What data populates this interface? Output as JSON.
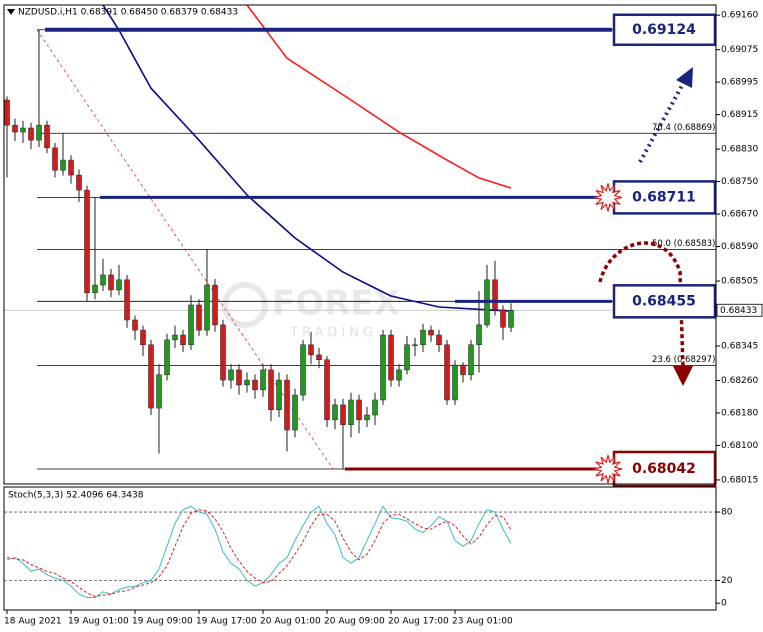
{
  "chart_data": [
    {
      "type": "candlestick",
      "title": "NZDUSD.i,H1  0.68391 0.68450 0.68379 0.68433",
      "watermark": [
        "FOREX",
        "TRADING"
      ],
      "categories": [
        "18 Aug 2021",
        null,
        null,
        null,
        null,
        null,
        null,
        null,
        "19 Aug 01:00",
        null,
        null,
        null,
        null,
        null,
        null,
        null,
        "19 Aug 09:00",
        null,
        null,
        null,
        null,
        null,
        null,
        null,
        "19 Aug 17:00",
        null,
        null,
        null,
        null,
        null,
        null,
        null,
        "20 Aug 01:00",
        null,
        null,
        null,
        null,
        null,
        null,
        null,
        "20 Aug 09:00",
        null,
        null,
        null,
        null,
        null,
        null,
        null,
        "20 Aug 17:00",
        null,
        null,
        null,
        null,
        null,
        null,
        null,
        "23 Aug 01:00",
        null,
        null,
        null,
        null,
        null,
        null,
        null
      ],
      "open": [
        0.68951,
        0.68889,
        0.68872,
        0.68882,
        0.68852,
        0.68889,
        0.68833,
        0.68778,
        0.68803,
        0.68766,
        0.68729,
        0.68476,
        0.68495,
        0.6852,
        0.68483,
        0.68508,
        0.68409,
        0.68384,
        0.68348,
        0.68192,
        0.68274,
        0.6836,
        0.68372,
        0.68348,
        0.68446,
        0.68384,
        0.68495,
        0.68397,
        0.68261,
        0.68286,
        0.68249,
        0.68261,
        0.68237,
        0.68286,
        0.68188,
        0.68261,
        0.68138,
        0.68224,
        0.68348,
        0.68323,
        0.68311,
        0.68163,
        0.682,
        0.68151,
        0.68212,
        0.68163,
        0.68175,
        0.68212,
        0.68372,
        0.68261,
        0.68286,
        0.68348,
        0.68348,
        0.68384,
        0.68372,
        0.68348,
        0.68212,
        0.68298,
        0.68274,
        0.68348,
        0.68397,
        0.68508,
        0.68434,
        0.68391
      ],
      "high": [
        0.6896,
        0.68905,
        0.689,
        0.68895,
        0.69124,
        0.689,
        0.68845,
        0.68869,
        0.68815,
        0.6878,
        0.6874,
        0.68711,
        0.6856,
        0.68535,
        0.68545,
        0.6852,
        0.6842,
        0.68395,
        0.6836,
        0.683,
        0.68375,
        0.68395,
        0.68385,
        0.6847,
        0.6846,
        0.68583,
        0.6851,
        0.6841,
        0.683,
        0.683,
        0.6828,
        0.68275,
        0.683,
        0.683,
        0.6828,
        0.68275,
        0.6824,
        0.6836,
        0.6838,
        0.6834,
        0.6832,
        0.68215,
        0.68215,
        0.6823,
        0.68225,
        0.68195,
        0.6823,
        0.68385,
        0.68385,
        0.683,
        0.6837,
        0.68365,
        0.684,
        0.68395,
        0.68385,
        0.6836,
        0.6831,
        0.68305,
        0.6836,
        0.6848,
        0.68545,
        0.68555,
        0.68445,
        0.6845
      ],
      "low": [
        0.6876,
        0.6885,
        0.68845,
        0.6883,
        0.68835,
        0.6882,
        0.6876,
        0.68765,
        0.68745,
        0.687,
        0.68455,
        0.6846,
        0.6848,
        0.68465,
        0.6847,
        0.6839,
        0.6836,
        0.6832,
        0.68175,
        0.6808,
        0.6826,
        0.6834,
        0.6833,
        0.68335,
        0.6837,
        0.6837,
        0.6838,
        0.68245,
        0.6824,
        0.68225,
        0.6823,
        0.68215,
        0.6822,
        0.6816,
        0.6817,
        0.68085,
        0.6812,
        0.6821,
        0.683,
        0.6829,
        0.68145,
        0.6814,
        0.68042,
        0.6812,
        0.6813,
        0.68145,
        0.6815,
        0.682,
        0.68245,
        0.68245,
        0.68275,
        0.6832,
        0.6833,
        0.68355,
        0.6833,
        0.682,
        0.682,
        0.68255,
        0.6826,
        0.6828,
        0.6839,
        0.6842,
        0.6836,
        0.68379
      ],
      "close": [
        0.68889,
        0.68872,
        0.68882,
        0.68852,
        0.68889,
        0.68833,
        0.68778,
        0.68803,
        0.68766,
        0.68729,
        0.68476,
        0.68495,
        0.6852,
        0.68483,
        0.68508,
        0.68409,
        0.68384,
        0.68348,
        0.68192,
        0.68274,
        0.6836,
        0.68372,
        0.68348,
        0.68446,
        0.68384,
        0.68495,
        0.68397,
        0.68261,
        0.68286,
        0.68249,
        0.68261,
        0.68237,
        0.68286,
        0.68188,
        0.68261,
        0.68138,
        0.68224,
        0.68348,
        0.68323,
        0.68311,
        0.68163,
        0.682,
        0.68151,
        0.68212,
        0.68163,
        0.68175,
        0.68212,
        0.68372,
        0.68261,
        0.68286,
        0.68348,
        0.68348,
        0.68384,
        0.68372,
        0.68348,
        0.68212,
        0.68298,
        0.68274,
        0.68348,
        0.68397,
        0.68508,
        0.68434,
        0.68391,
        0.68433
      ],
      "up_color": "#1f9a1f",
      "down_color": "#d61a1a",
      "series": [
        {
          "color": "#0a0a8c",
          "x": [
            12,
            14,
            18,
            24,
            30,
            36,
            42,
            48,
            54,
            60,
            63
          ],
          "values": [
            0.69185,
            0.69123,
            0.6898,
            0.68852,
            0.68717,
            0.68611,
            0.68527,
            0.68468,
            0.68441,
            0.68434,
            0.68431
          ]
        },
        {
          "color": "#ff1a1a",
          "x": [
            30,
            35,
            43,
            49,
            55,
            59,
            63
          ],
          "values": [
            0.69185,
            0.69054,
            0.68951,
            0.68872,
            0.68803,
            0.68759,
            0.68734
          ]
        }
      ],
      "ylim": [
        0.68005,
        0.69185
      ],
      "yticks": [
        {
          "value": 0.6916,
          "label": "0.69160"
        },
        0.69075,
        0.68995,
        0.68915,
        {
          "value": 0.6883,
          "label": "0.68830"
        },
        {
          "value": 0.6875,
          "label": "0.68750"
        },
        {
          "value": 0.6867,
          "label": "0.68670"
        },
        {
          "value": 0.6859,
          "label": "0.68590"
        },
        0.68505,
        0.68345,
        {
          "value": 0.6826,
          "label": "0.68260"
        },
        {
          "value": 0.6818,
          "label": "0.68180"
        },
        {
          "value": 0.681,
          "label": "0.68100"
        },
        0.68015
      ],
      "current_price": 0.68433,
      "levels": [
        {
          "value": 0.69124,
          "color": "#1a237e"
        },
        {
          "value": 0.68711,
          "color": "#1a237e"
        },
        {
          "value": 0.68455,
          "color": "#1a237e"
        },
        {
          "value": 0.68042,
          "color": "#8b0000"
        }
      ],
      "fib_levels": [
        0.69124,
        {
          "value": 0.68869,
          "label": "76.4 (0.68869)"
        },
        0.68711,
        {
          "value": 0.68583,
          "label": "50.0 (0.68583)"
        },
        0.68455,
        {
          "value": 0.68297,
          "label": "23.6 (0.68297)"
        },
        0.68042
      ]
    },
    {
      "type": "line",
      "title": "Stoch(5,3,3) 52.4096 64.3438",
      "series": [
        {
          "color": "#3cbcc0",
          "values": [
            38,
            40,
            35,
            28,
            30,
            25,
            22,
            20,
            15,
            8,
            5,
            5,
            10,
            8,
            12,
            14,
            15,
            18,
            20,
            30,
            50,
            70,
            82,
            85,
            80,
            78,
            65,
            45,
            35,
            30,
            20,
            15,
            18,
            25,
            35,
            40,
            55,
            68,
            80,
            85,
            70,
            60,
            40,
            35,
            40,
            55,
            70,
            85,
            75,
            74,
            72,
            65,
            62,
            68,
            76,
            72,
            55,
            50,
            55,
            70,
            82,
            80,
            65,
            52.4096
          ]
        },
        {
          "color": "#e02020",
          "dashed": true,
          "values": [
            40,
            39,
            38,
            34,
            31,
            28,
            26,
            22,
            19,
            14,
            9,
            6,
            7,
            8,
            10,
            11,
            14,
            16,
            18,
            23,
            33,
            50,
            67,
            79,
            82,
            81,
            74,
            63,
            48,
            37,
            28,
            22,
            18,
            19,
            26,
            33,
            43,
            54,
            68,
            78,
            78,
            72,
            57,
            45,
            38,
            43,
            55,
            70,
            77,
            78,
            74,
            70,
            66,
            65,
            69,
            72,
            68,
            59,
            52,
            58,
            69,
            77,
            76,
            64.3438
          ]
        }
      ],
      "ylim": [
        -6,
        102
      ],
      "yticks": [
        80,
        20,
        0
      ],
      "levels": [
        80,
        20
      ]
    }
  ]
}
